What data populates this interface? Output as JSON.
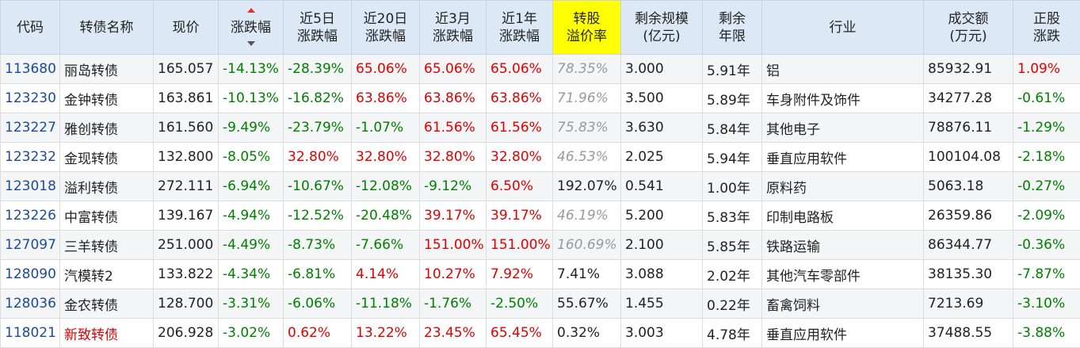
{
  "header": {
    "code": "代码",
    "name": "转债名称",
    "price": "现价",
    "change": "涨跌幅",
    "d5": [
      "近5日",
      "涨跌幅"
    ],
    "d20": [
      "近20日",
      "涨跌幅"
    ],
    "m3": [
      "近3月",
      "涨跌幅"
    ],
    "y1": [
      "近1年",
      "涨跌幅"
    ],
    "premium": [
      "转股",
      "溢价率"
    ],
    "scale": [
      "剩余规模",
      "(亿元)"
    ],
    "years": [
      "剩余",
      "年限"
    ],
    "industry": "行业",
    "volume": [
      "成交额",
      "(万元)"
    ],
    "stock": [
      "正股",
      "涨跌"
    ]
  },
  "colors": {
    "up": "#e00000",
    "down": "#008000",
    "code": "#1a4b99",
    "header_bg": "#dde8f6",
    "highlight": "#ffff00"
  },
  "rows": [
    {
      "code": "113680",
      "name": "丽岛转债",
      "price": "165.057",
      "change": "-14.13%",
      "d5": "-28.39%",
      "d20": "65.06%",
      "m3": "65.06%",
      "y1": "65.06%",
      "premium": "78.35%",
      "scale": "3.000",
      "years": "5.91年",
      "industry": "铝",
      "volume": "85932.91",
      "stock": "1.09%"
    },
    {
      "code": "123230",
      "name": "金钟转债",
      "price": "163.861",
      "change": "-10.13%",
      "d5": "-16.82%",
      "d20": "63.86%",
      "m3": "63.86%",
      "y1": "63.86%",
      "premium": "71.96%",
      "scale": "3.500",
      "years": "5.89年",
      "industry": "车身附件及饰件",
      "volume": "34277.28",
      "stock": "-0.61%"
    },
    {
      "code": "123227",
      "name": "雅创转债",
      "price": "161.560",
      "change": "-9.49%",
      "d5": "-23.79%",
      "d20": "-1.07%",
      "m3": "61.56%",
      "y1": "61.56%",
      "premium": "75.83%",
      "scale": "3.630",
      "years": "5.84年",
      "industry": "其他电子",
      "volume": "78876.11",
      "stock": "-1.29%"
    },
    {
      "code": "123232",
      "name": "金现转债",
      "price": "132.800",
      "change": "-8.05%",
      "d5": "32.80%",
      "d20": "32.80%",
      "m3": "32.80%",
      "y1": "32.80%",
      "premium": "46.53%",
      "scale": "2.025",
      "years": "5.94年",
      "industry": "垂直应用软件",
      "volume": "100104.08",
      "stock": "-2.18%"
    },
    {
      "code": "123018",
      "name": "溢利转债",
      "price": "272.111",
      "change": "-6.94%",
      "d5": "-10.67%",
      "d20": "-12.08%",
      "m3": "-9.12%",
      "y1": "6.50%",
      "premium": "192.07%",
      "scale": "0.541",
      "years": "1.00年",
      "industry": "原料药",
      "volume": "5063.18",
      "stock": "-0.27%"
    },
    {
      "code": "123226",
      "name": "中富转债",
      "price": "139.167",
      "change": "-4.94%",
      "d5": "-12.52%",
      "d20": "-20.48%",
      "m3": "39.17%",
      "y1": "39.17%",
      "premium": "46.19%",
      "scale": "5.200",
      "years": "5.83年",
      "industry": "印制电路板",
      "volume": "26359.86",
      "stock": "-2.09%"
    },
    {
      "code": "127097",
      "name": "三羊转债",
      "price": "251.000",
      "change": "-4.49%",
      "d5": "-8.73%",
      "d20": "-7.66%",
      "m3": "151.00%",
      "y1": "151.00%",
      "premium": "160.69%",
      "scale": "2.100",
      "years": "5.85年",
      "industry": "铁路运输",
      "volume": "86344.77",
      "stock": "-0.36%"
    },
    {
      "code": "128090",
      "name": "汽模转2",
      "price": "133.822",
      "change": "-4.34%",
      "d5": "-6.81%",
      "d20": "4.14%",
      "m3": "10.27%",
      "y1": "7.92%",
      "premium": "7.41%",
      "scale": "3.088",
      "years": "2.02年",
      "industry": "其他汽车零部件",
      "volume": "38135.30",
      "stock": "-7.87%"
    },
    {
      "code": "128036",
      "name": "金农转债",
      "price": "128.700",
      "change": "-3.31%",
      "d5": "-6.06%",
      "d20": "-11.18%",
      "m3": "-1.76%",
      "y1": "-2.50%",
      "premium": "55.67%",
      "scale": "1.455",
      "years": "0.22年",
      "industry": "畜禽饲料",
      "volume": "7213.69",
      "stock": "-3.10%"
    },
    {
      "code": "118021",
      "name": "新致转债",
      "price": "206.928",
      "change": "-3.02%",
      "d5": "0.62%",
      "d20": "13.22%",
      "m3": "23.45%",
      "y1": "65.45%",
      "premium": "0.32%",
      "scale": "3.003",
      "years": "4.78年",
      "industry": "垂直应用软件",
      "volume": "37488.55",
      "stock": "-3.88%"
    }
  ],
  "row_styles": {
    "gray_premium_rows": [
      0,
      1,
      2,
      3,
      5,
      6
    ],
    "red_name_rows": [
      9
    ]
  }
}
